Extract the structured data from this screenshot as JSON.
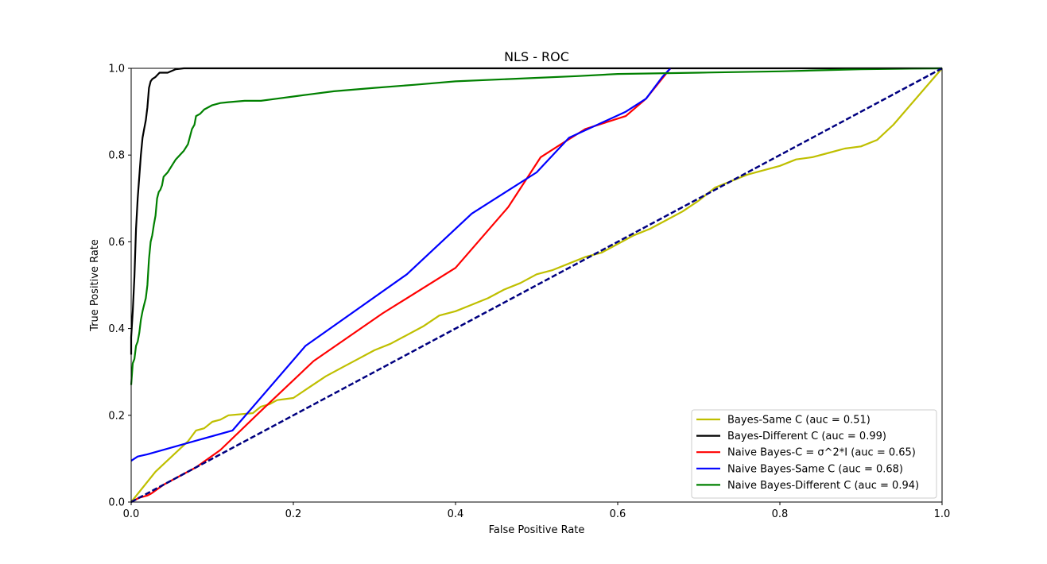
{
  "chart_data": {
    "type": "line",
    "title": "NLS - ROC",
    "xlabel": "False Positive Rate",
    "ylabel": "True Positive Rate",
    "xlim": [
      0.0,
      1.0
    ],
    "ylim": [
      0.0,
      1.0
    ],
    "xticks": [
      "0.0",
      "0.2",
      "0.4",
      "0.6",
      "0.8",
      "1.0"
    ],
    "yticks": [
      "0.0",
      "0.2",
      "0.4",
      "0.6",
      "0.8",
      "1.0"
    ],
    "grid": false,
    "legend_position": "lower-right",
    "series": [
      {
        "name": "Bayes-Same C (auc = 0.51)",
        "color": "#bfbf00",
        "x": [
          0.0,
          0.03,
          0.07,
          0.08,
          0.09,
          0.1,
          0.11,
          0.12,
          0.15,
          0.16,
          0.17,
          0.18,
          0.2,
          0.22,
          0.24,
          0.26,
          0.28,
          0.3,
          0.32,
          0.34,
          0.36,
          0.38,
          0.4,
          0.42,
          0.44,
          0.46,
          0.48,
          0.5,
          0.52,
          0.54,
          0.56,
          0.58,
          0.6,
          0.62,
          0.64,
          0.66,
          0.68,
          0.7,
          0.72,
          0.74,
          0.76,
          0.78,
          0.8,
          0.82,
          0.84,
          0.86,
          0.88,
          0.9,
          0.92,
          0.94,
          1.0
        ],
        "y": [
          0.0,
          0.07,
          0.14,
          0.165,
          0.17,
          0.185,
          0.19,
          0.2,
          0.205,
          0.22,
          0.225,
          0.235,
          0.24,
          0.265,
          0.29,
          0.31,
          0.33,
          0.35,
          0.365,
          0.385,
          0.405,
          0.43,
          0.44,
          0.455,
          0.47,
          0.49,
          0.505,
          0.525,
          0.535,
          0.55,
          0.565,
          0.575,
          0.595,
          0.615,
          0.63,
          0.65,
          0.67,
          0.695,
          0.725,
          0.74,
          0.755,
          0.765,
          0.775,
          0.79,
          0.795,
          0.805,
          0.815,
          0.82,
          0.835,
          0.87,
          1.0
        ]
      },
      {
        "name": "Bayes-Different C (auc = 0.99)",
        "color": "#000000",
        "x": [
          0.0,
          0.0,
          0.002,
          0.004,
          0.006,
          0.008,
          0.01,
          0.012,
          0.014,
          0.016,
          0.018,
          0.02,
          0.022,
          0.024,
          0.026,
          0.03,
          0.035,
          0.045,
          0.055,
          0.065,
          1.0
        ],
        "y": [
          0.34,
          0.38,
          0.44,
          0.52,
          0.63,
          0.7,
          0.75,
          0.8,
          0.84,
          0.86,
          0.88,
          0.91,
          0.955,
          0.97,
          0.975,
          0.98,
          0.99,
          0.99,
          0.998,
          1.0,
          1.0
        ]
      },
      {
        "name": "Naive Bayes-C = σ^2*I (auc = 0.65)",
        "color": "#ff0000",
        "x": [
          0.0,
          0.01,
          0.02,
          0.025,
          0.04,
          0.06,
          0.08,
          0.11,
          0.16,
          0.225,
          0.31,
          0.4,
          0.465,
          0.505,
          0.53,
          0.56,
          0.61,
          0.635,
          0.65,
          0.665
        ],
        "y": [
          0.0,
          0.01,
          0.015,
          0.02,
          0.04,
          0.06,
          0.08,
          0.12,
          0.21,
          0.325,
          0.435,
          0.54,
          0.68,
          0.795,
          0.825,
          0.86,
          0.89,
          0.93,
          0.965,
          1.0
        ]
      },
      {
        "name": "Naive Bayes-Same C (auc = 0.68)",
        "color": "#0000ff",
        "x": [
          0.0,
          0.008,
          0.02,
          0.125,
          0.215,
          0.34,
          0.42,
          0.5,
          0.54,
          0.61,
          0.635,
          0.655,
          0.665
        ],
        "y": [
          0.095,
          0.105,
          0.11,
          0.165,
          0.36,
          0.525,
          0.665,
          0.76,
          0.84,
          0.9,
          0.93,
          0.98,
          1.0
        ]
      },
      {
        "name": "Naive Bayes-Different C (auc = 0.94)",
        "color": "#008000",
        "x": [
          0.0,
          0.002,
          0.004,
          0.006,
          0.008,
          0.01,
          0.012,
          0.014,
          0.016,
          0.018,
          0.02,
          0.022,
          0.024,
          0.026,
          0.028,
          0.03,
          0.032,
          0.034,
          0.036,
          0.038,
          0.04,
          0.045,
          0.05,
          0.055,
          0.06,
          0.065,
          0.07,
          0.075,
          0.078,
          0.08,
          0.085,
          0.09,
          0.1,
          0.11,
          0.12,
          0.14,
          0.16,
          0.18,
          0.2,
          0.22,
          0.25,
          0.3,
          0.35,
          0.4,
          0.5,
          0.55,
          0.6,
          0.7,
          0.8,
          0.9,
          1.0
        ],
        "y": [
          0.27,
          0.32,
          0.33,
          0.36,
          0.37,
          0.39,
          0.42,
          0.44,
          0.455,
          0.47,
          0.5,
          0.56,
          0.6,
          0.615,
          0.64,
          0.66,
          0.7,
          0.715,
          0.72,
          0.73,
          0.75,
          0.76,
          0.775,
          0.79,
          0.8,
          0.81,
          0.825,
          0.86,
          0.87,
          0.89,
          0.895,
          0.905,
          0.915,
          0.92,
          0.922,
          0.925,
          0.925,
          0.93,
          0.935,
          0.94,
          0.947,
          0.955,
          0.962,
          0.97,
          0.978,
          0.982,
          0.987,
          0.99,
          0.993,
          0.998,
          1.0
        ]
      }
    ],
    "reference_line": {
      "x": [
        0.0,
        1.0
      ],
      "y": [
        0.0,
        1.0
      ],
      "color": "#000080",
      "style": "dashed"
    }
  }
}
